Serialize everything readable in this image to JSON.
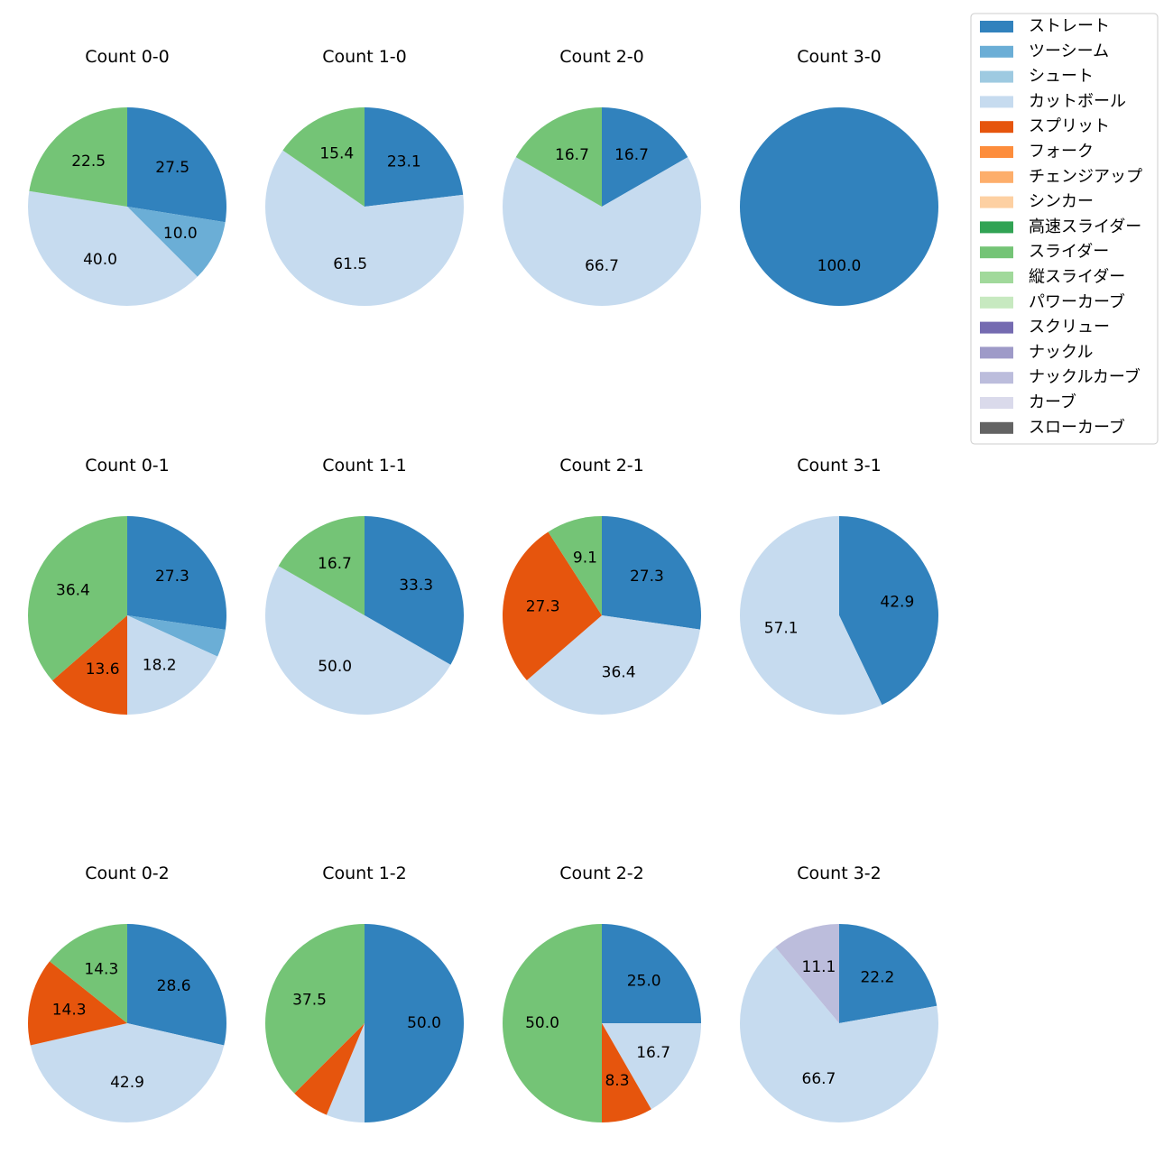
{
  "chart_data": {
    "type": "pie",
    "legend": {
      "placement": "top-right",
      "entries": [
        {
          "name": "ストレート",
          "color": "#3182bd"
        },
        {
          "name": "ツーシーム",
          "color": "#6baed6"
        },
        {
          "name": "シュート",
          "color": "#9ecae1"
        },
        {
          "name": "カットボール",
          "color": "#c6dbef"
        },
        {
          "name": "スプリット",
          "color": "#e6550d"
        },
        {
          "name": "フォーク",
          "color": "#fd8d3c"
        },
        {
          "name": "チェンジアップ",
          "color": "#fdae6b"
        },
        {
          "name": "シンカー",
          "color": "#fdd0a2"
        },
        {
          "name": "高速スライダー",
          "color": "#31a354"
        },
        {
          "name": "スライダー",
          "color": "#74c476"
        },
        {
          "name": "縦スライダー",
          "color": "#a1d99b"
        },
        {
          "name": "パワーカーブ",
          "color": "#c7e9c0"
        },
        {
          "name": "スクリュー",
          "color": "#756bb1"
        },
        {
          "name": "ナックル",
          "color": "#9e9ac8"
        },
        {
          "name": "ナックルカーブ",
          "color": "#bcbddc"
        },
        {
          "name": "カーブ",
          "color": "#dadaeb"
        },
        {
          "name": "スローカーブ",
          "color": "#636363"
        }
      ]
    },
    "pies": [
      {
        "title": "Count 0-0",
        "slices": [
          {
            "pitch": "ストレート",
            "value": 27.5,
            "label": "27.5"
          },
          {
            "pitch": "ツーシーム",
            "value": 10.0,
            "label": "10.0"
          },
          {
            "pitch": "カットボール",
            "value": 40.0,
            "label": "40.0"
          },
          {
            "pitch": "スライダー",
            "value": 22.5,
            "label": "22.5"
          }
        ]
      },
      {
        "title": "Count 1-0",
        "slices": [
          {
            "pitch": "ストレート",
            "value": 23.1,
            "label": "23.1"
          },
          {
            "pitch": "カットボール",
            "value": 61.5,
            "label": "61.5"
          },
          {
            "pitch": "スライダー",
            "value": 15.4,
            "label": "15.4"
          }
        ]
      },
      {
        "title": "Count 2-0",
        "slices": [
          {
            "pitch": "ストレート",
            "value": 16.7,
            "label": "16.7"
          },
          {
            "pitch": "カットボール",
            "value": 66.7,
            "label": "66.7"
          },
          {
            "pitch": "スライダー",
            "value": 16.7,
            "label": "16.7"
          }
        ]
      },
      {
        "title": "Count 3-0",
        "slices": [
          {
            "pitch": "ストレート",
            "value": 100.0,
            "label": "100.0"
          }
        ]
      },
      {
        "title": "Count 0-1",
        "slices": [
          {
            "pitch": "ストレート",
            "value": 27.3,
            "label": "27.3"
          },
          {
            "pitch": "ツーシーム",
            "value": 4.5,
            "label": ""
          },
          {
            "pitch": "カットボール",
            "value": 18.2,
            "label": "18.2"
          },
          {
            "pitch": "スプリット",
            "value": 13.6,
            "label": "13.6"
          },
          {
            "pitch": "スライダー",
            "value": 36.4,
            "label": "36.4"
          }
        ]
      },
      {
        "title": "Count 1-1",
        "slices": [
          {
            "pitch": "ストレート",
            "value": 33.3,
            "label": "33.3"
          },
          {
            "pitch": "カットボール",
            "value": 50.0,
            "label": "50.0"
          },
          {
            "pitch": "スライダー",
            "value": 16.7,
            "label": "16.7"
          }
        ]
      },
      {
        "title": "Count 2-1",
        "slices": [
          {
            "pitch": "ストレート",
            "value": 27.3,
            "label": "27.3"
          },
          {
            "pitch": "カットボール",
            "value": 36.4,
            "label": "36.4"
          },
          {
            "pitch": "スプリット",
            "value": 27.3,
            "label": "27.3"
          },
          {
            "pitch": "スライダー",
            "value": 9.1,
            "label": "9.1"
          }
        ]
      },
      {
        "title": "Count 3-1",
        "slices": [
          {
            "pitch": "ストレート",
            "value": 42.9,
            "label": "42.9"
          },
          {
            "pitch": "カットボール",
            "value": 57.1,
            "label": "57.1"
          }
        ]
      },
      {
        "title": "Count 0-2",
        "slices": [
          {
            "pitch": "ストレート",
            "value": 28.6,
            "label": "28.6"
          },
          {
            "pitch": "カットボール",
            "value": 42.9,
            "label": "42.9"
          },
          {
            "pitch": "スプリット",
            "value": 14.3,
            "label": "14.3"
          },
          {
            "pitch": "スライダー",
            "value": 14.3,
            "label": "14.3"
          }
        ]
      },
      {
        "title": "Count 1-2",
        "slices": [
          {
            "pitch": "ストレート",
            "value": 50.0,
            "label": "50.0"
          },
          {
            "pitch": "カットボール",
            "value": 6.25,
            "label": ""
          },
          {
            "pitch": "スプリット",
            "value": 6.25,
            "label": ""
          },
          {
            "pitch": "スライダー",
            "value": 37.5,
            "label": "37.5"
          }
        ]
      },
      {
        "title": "Count 2-2",
        "slices": [
          {
            "pitch": "ストレート",
            "value": 25.0,
            "label": "25.0"
          },
          {
            "pitch": "カットボール",
            "value": 16.7,
            "label": "16.7"
          },
          {
            "pitch": "スプリット",
            "value": 8.3,
            "label": "8.3"
          },
          {
            "pitch": "スライダー",
            "value": 50.0,
            "label": "50.0"
          }
        ]
      },
      {
        "title": "Count 3-2",
        "slices": [
          {
            "pitch": "ストレート",
            "value": 22.2,
            "label": "22.2"
          },
          {
            "pitch": "カットボール",
            "value": 66.7,
            "label": "66.7"
          },
          {
            "pitch": "ナックルカーブ",
            "value": 11.1,
            "label": "11.1"
          }
        ]
      }
    ]
  }
}
